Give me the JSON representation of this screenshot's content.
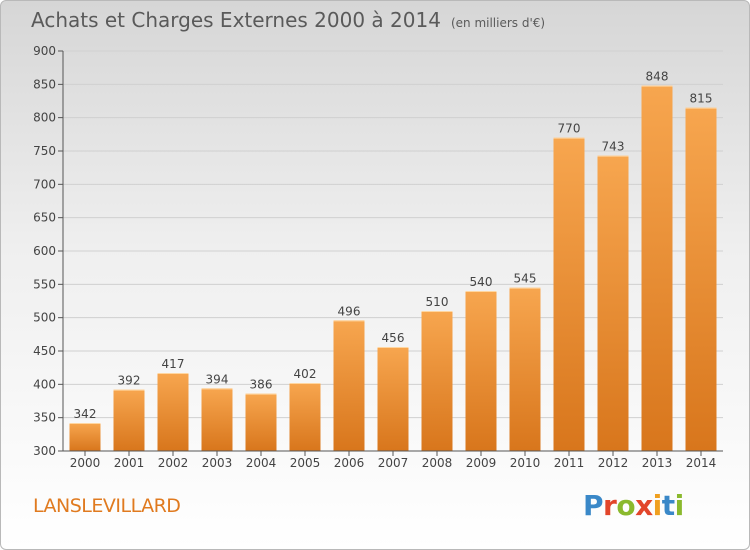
{
  "chart_data": {
    "type": "bar",
    "title": "Achats et Charges Externes 2000 à 2014",
    "subtitle": "(en milliers d'€)",
    "categories": [
      "2000",
      "2001",
      "2002",
      "2003",
      "2004",
      "2005",
      "2006",
      "2007",
      "2008",
      "2009",
      "2010",
      "2011",
      "2012",
      "2013",
      "2014"
    ],
    "values": [
      342,
      392,
      417,
      394,
      386,
      402,
      496,
      456,
      510,
      540,
      545,
      770,
      743,
      848,
      815
    ],
    "ylim": [
      300,
      900
    ],
    "yticks": [
      300,
      350,
      400,
      450,
      500,
      550,
      600,
      650,
      700,
      750,
      800,
      850,
      900
    ],
    "grid": true,
    "colors": {
      "bar_light": "#f7a64f",
      "bar_dark": "#d8761c"
    }
  },
  "footer": {
    "commune": "LANSLEVILLARD",
    "brand": "Proxiti",
    "brand_colors": [
      "#3a88c8",
      "#e2452a",
      "#8ab92d",
      "#e2452a",
      "#f0a020",
      "#3a88c8",
      "#8ab92d"
    ]
  }
}
